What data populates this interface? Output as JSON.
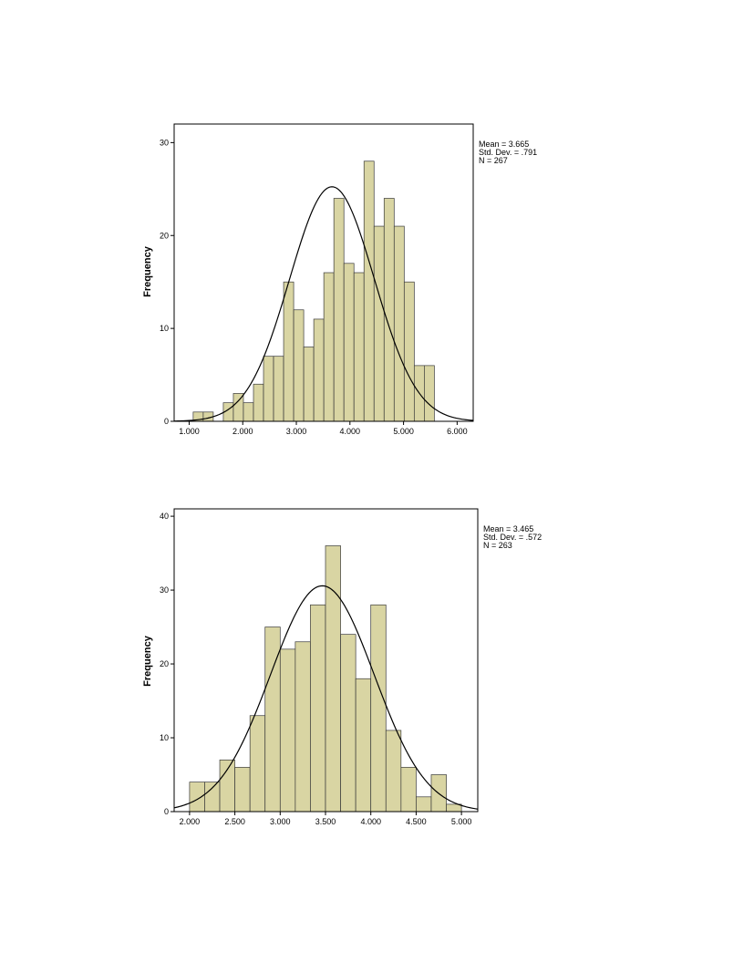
{
  "colors": {
    "bar_fill": "#d9d5a3",
    "bar_stroke": "#3a3a3a",
    "curve": "#000000",
    "frame": "#000000"
  },
  "chart_data": [
    {
      "type": "bar",
      "ylabel": "Frequency",
      "xlabel": "",
      "title": "",
      "xlim": [
        0.72,
        6.3
      ],
      "ylim": [
        0,
        32
      ],
      "xticks": [
        "1.000",
        "2.000",
        "3.000",
        "4.000",
        "5.000",
        "6.000"
      ],
      "xtick_values": [
        1,
        2,
        3,
        4,
        5,
        6
      ],
      "yticks": [
        0,
        10,
        20,
        30
      ],
      "bin_width": 0.1875,
      "bins": [
        {
          "x0": 1.075,
          "count": 1
        },
        {
          "x0": 1.2625,
          "count": 1
        },
        {
          "x0": 1.45,
          "count": 0
        },
        {
          "x0": 1.6375,
          "count": 2
        },
        {
          "x0": 1.825,
          "count": 3
        },
        {
          "x0": 2.0125,
          "count": 2
        },
        {
          "x0": 2.2,
          "count": 4
        },
        {
          "x0": 2.3875,
          "count": 7
        },
        {
          "x0": 2.575,
          "count": 7
        },
        {
          "x0": 2.7625,
          "count": 15
        },
        {
          "x0": 2.95,
          "count": 12
        },
        {
          "x0": 3.1375,
          "count": 8
        },
        {
          "x0": 3.325,
          "count": 11
        },
        {
          "x0": 3.5125,
          "count": 16
        },
        {
          "x0": 3.7,
          "count": 24
        },
        {
          "x0": 3.8875,
          "count": 17
        },
        {
          "x0": 4.075,
          "count": 16
        },
        {
          "x0": 4.2625,
          "count": 28
        },
        {
          "x0": 4.45,
          "count": 21
        },
        {
          "x0": 4.6375,
          "count": 24
        },
        {
          "x0": 4.825,
          "count": 21
        },
        {
          "x0": 5.0125,
          "count": 15
        },
        {
          "x0": 5.2,
          "count": 6
        },
        {
          "x0": 5.3875,
          "count": 6
        }
      ],
      "normal_curve": {
        "mean": 3.665,
        "sd": 0.791,
        "n": 267,
        "x_from": 0.72,
        "x_to": 6.3
      },
      "stats": [
        "Mean = 3.665",
        "Std. Dev. = .791",
        "N = 267"
      ]
    },
    {
      "type": "bar",
      "ylabel": "Frequency",
      "xlabel": "",
      "title": "",
      "xlim": [
        1.83,
        5.18
      ],
      "ylim": [
        0,
        41
      ],
      "xticks": [
        "2.000",
        "2.500",
        "3.000",
        "3.500",
        "4.000",
        "4.500",
        "5.000"
      ],
      "xtick_values": [
        2,
        2.5,
        3,
        3.5,
        4,
        4.5,
        5
      ],
      "yticks": [
        0,
        10,
        20,
        30,
        40
      ],
      "bin_width": 0.1667,
      "bins": [
        {
          "x0": 2.0,
          "count": 4
        },
        {
          "x0": 2.1667,
          "count": 4
        },
        {
          "x0": 2.3333,
          "count": 7
        },
        {
          "x0": 2.5,
          "count": 6
        },
        {
          "x0": 2.6667,
          "count": 13
        },
        {
          "x0": 2.8333,
          "count": 25
        },
        {
          "x0": 3.0,
          "count": 22
        },
        {
          "x0": 3.1667,
          "count": 23
        },
        {
          "x0": 3.3333,
          "count": 28
        },
        {
          "x0": 3.5,
          "count": 36
        },
        {
          "x0": 3.6667,
          "count": 24
        },
        {
          "x0": 3.8333,
          "count": 18
        },
        {
          "x0": 4.0,
          "count": 28
        },
        {
          "x0": 4.1667,
          "count": 11
        },
        {
          "x0": 4.3333,
          "count": 6
        },
        {
          "x0": 4.5,
          "count": 2
        },
        {
          "x0": 4.6667,
          "count": 5
        },
        {
          "x0": 4.8333,
          "count": 1
        }
      ],
      "normal_curve": {
        "mean": 3.465,
        "sd": 0.572,
        "n": 263,
        "x_from": 1.83,
        "x_to": 5.18
      },
      "stats": [
        "Mean = 3.465",
        "Std. Dev. = .572",
        "N = 263"
      ]
    }
  ]
}
